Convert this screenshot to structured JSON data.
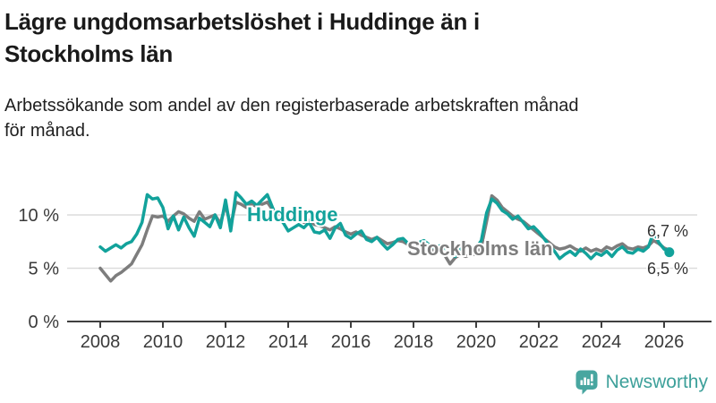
{
  "header": {
    "title_line1": "Lägre ungdomsarbetslöshet i Huddinge än i",
    "title_line2": "Stockholms län",
    "subtitle_line1": "Arbetssökande som andel av den registerbaserade arbetskraften månad",
    "subtitle_line2": "för månad."
  },
  "chart_data": {
    "type": "line",
    "title": "Lägre ungdomsarbetslöshet i Huddinge än i Stockholms län",
    "subtitle": "Arbetssökande som andel av den registerbaserade arbetskraften månad för månad.",
    "x_start": 2008,
    "x_step_years": 0.1666667,
    "xlim": [
      2008,
      2026.2
    ],
    "ylim": [
      0,
      12.5
    ],
    "grid": "horizontal",
    "legend": "inline-labels",
    "x_ticks": [
      2008,
      2010,
      2012,
      2014,
      2016,
      2018,
      2020,
      2022,
      2024,
      2026
    ],
    "y_ticks": [
      {
        "value": 0,
        "label": "0 %"
      },
      {
        "value": 5,
        "label": "5 %"
      },
      {
        "value": 10,
        "label": "10 %"
      }
    ],
    "colors": {
      "axis": "#3f3f3f",
      "grid": "#dcdcdc",
      "tick_label": "#3a3a3a",
      "end_label": "#333333"
    },
    "series": [
      {
        "name": "Stockholms län",
        "color": "#7d7d7d",
        "end_label": "6,7 %",
        "end_dot": false,
        "values": [
          5.0,
          4.4,
          3.8,
          4.3,
          4.6,
          5.0,
          5.4,
          6.3,
          7.2,
          8.6,
          9.9,
          9.8,
          9.9,
          9.4,
          9.9,
          10.3,
          10.1,
          9.7,
          9.4,
          10.3,
          9.6,
          9.8,
          10.0,
          9.2,
          10.9,
          9.0,
          11.2,
          11.0,
          10.7,
          11.0,
          10.8,
          11.0,
          11.2,
          10.5,
          10.1,
          10.0,
          9.8,
          9.5,
          9.7,
          9.3,
          9.5,
          9.1,
          9.0,
          8.8,
          8.6,
          8.9,
          8.7,
          8.4,
          8.2,
          8.4,
          8.1,
          7.9,
          7.7,
          7.9,
          7.6,
          7.3,
          7.4,
          7.6,
          7.5,
          7.2,
          7.1,
          7.3,
          7.0,
          6.8,
          6.7,
          6.9,
          6.2,
          5.4,
          6.0,
          6.3,
          6.1,
          6.3,
          6.3,
          7.0,
          9.4,
          11.8,
          11.4,
          10.7,
          10.3,
          9.9,
          9.6,
          9.4,
          9.0,
          8.6,
          8.2,
          7.8,
          7.4,
          7.0,
          6.8,
          6.9,
          7.1,
          6.8,
          6.6,
          6.9,
          6.6,
          6.8,
          6.6,
          7.0,
          6.8,
          7.1,
          7.3,
          6.9,
          6.8,
          7.0,
          6.9,
          7.1,
          7.6,
          7.3,
          6.9,
          6.7
        ]
      },
      {
        "name": "Huddinge",
        "color": "#12a29b",
        "end_label": "6,5 %",
        "end_dot": true,
        "values": [
          7.0,
          6.6,
          6.9,
          7.2,
          6.9,
          7.3,
          7.5,
          8.2,
          9.3,
          11.9,
          11.5,
          11.6,
          10.7,
          8.7,
          9.9,
          8.6,
          9.8,
          8.8,
          8.0,
          9.7,
          9.3,
          8.9,
          10.0,
          8.8,
          11.4,
          8.5,
          12.1,
          11.6,
          11.0,
          11.3,
          10.9,
          11.4,
          11.9,
          10.7,
          9.6,
          9.3,
          8.5,
          8.8,
          9.1,
          8.8,
          9.3,
          8.4,
          8.3,
          8.6,
          7.8,
          8.8,
          9.2,
          8.1,
          7.8,
          8.2,
          8.5,
          7.7,
          7.5,
          7.9,
          7.3,
          6.8,
          7.2,
          7.7,
          7.8,
          7.3,
          7.0,
          7.4,
          7.6,
          7.2,
          6.9,
          7.1,
          6.9,
          6.4,
          6.1,
          6.8,
          7.2,
          6.8,
          6.9,
          7.6,
          10.2,
          11.5,
          11.1,
          10.4,
          10.1,
          9.6,
          9.9,
          9.3,
          8.7,
          8.9,
          8.4,
          7.8,
          7.1,
          6.6,
          5.9,
          6.3,
          6.6,
          6.2,
          6.8,
          6.4,
          5.9,
          6.4,
          6.2,
          6.6,
          6.1,
          6.7,
          7.0,
          6.5,
          6.4,
          6.8,
          6.6,
          7.0,
          8.4,
          7.4,
          6.8,
          6.5
        ]
      }
    ]
  },
  "footer": {
    "brand": "Newsworthy",
    "brand_color": "#3da09a",
    "icon": "newsworthy-bar-chart-bubble-icon",
    "icon_color": "#48a6a0"
  }
}
